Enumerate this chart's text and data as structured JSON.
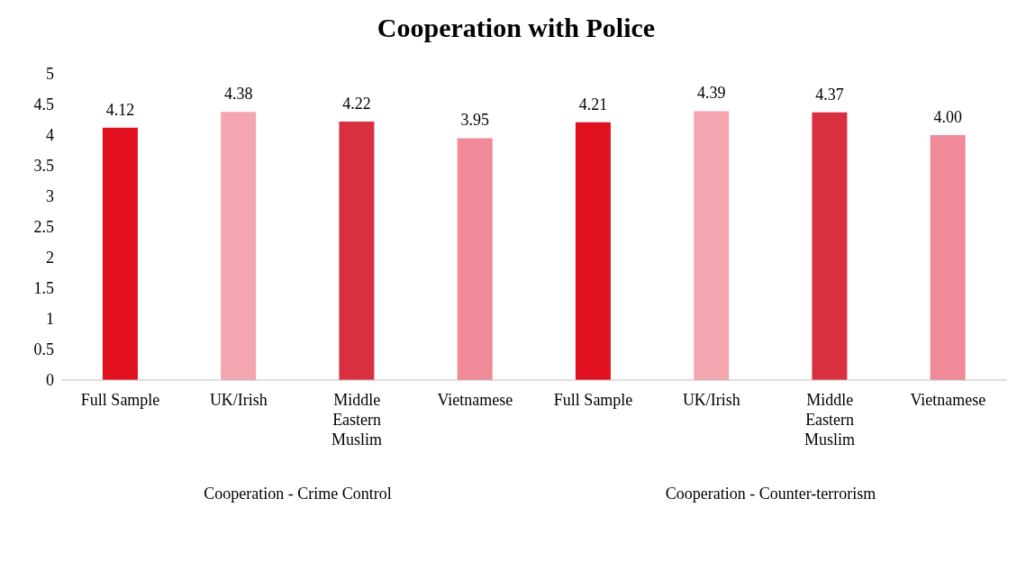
{
  "chart_data": {
    "type": "bar",
    "title": "Cooperation with Police",
    "categories": [
      "Full Sample",
      "UK/Irish",
      "Middle Eastern Muslim",
      "Vietnamese",
      "Full Sample",
      "UK/Irish",
      "Middle Eastern Muslim",
      "Vietnamese"
    ],
    "values": [
      4.12,
      4.38,
      4.22,
      3.95,
      4.21,
      4.39,
      4.37,
      4.0
    ],
    "value_labels": [
      "4.12",
      "4.38",
      "4.22",
      "3.95",
      "4.21",
      "4.39",
      "4.37",
      "4.00"
    ],
    "colors": [
      "#e0101e",
      "#f4a6b0",
      "#d8303e",
      "#f08a98",
      "#e0101e",
      "#f4a6b0",
      "#d8303e",
      "#f08a98"
    ],
    "ylim": [
      0,
      5
    ],
    "yticks": [
      0,
      0.5,
      1,
      1.5,
      2,
      2.5,
      3,
      3.5,
      4,
      4.5,
      5
    ],
    "annotations": [
      "Cooperation - Crime Control",
      "Cooperation - Counter-terrorism"
    ]
  }
}
